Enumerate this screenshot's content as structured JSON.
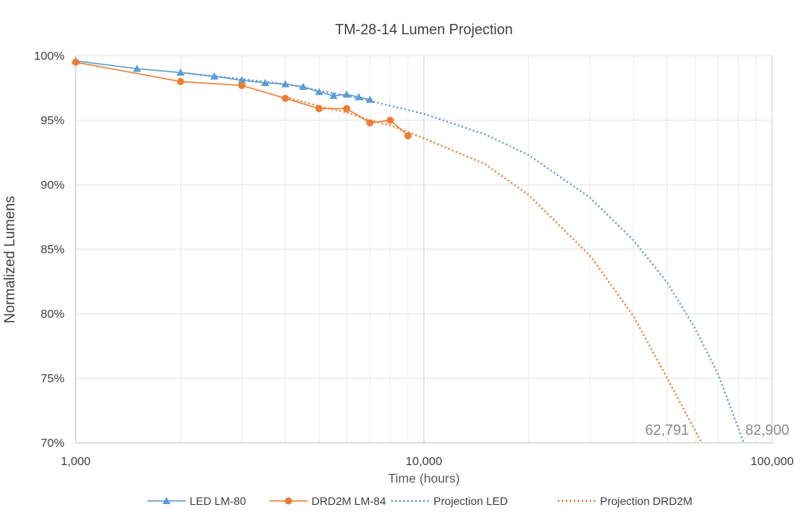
{
  "chart_data": {
    "type": "line",
    "title": "TM-28-14 Lumen Projection",
    "xlabel": "Time (hours)",
    "ylabel": "Normalized Lumens",
    "x_scale": "log",
    "xlim": [
      1000,
      100000
    ],
    "ylim": [
      70,
      100
    ],
    "x_ticks": [
      {
        "value": 1000,
        "label": "1,000"
      },
      {
        "value": 10000,
        "label": "10,000"
      },
      {
        "value": 100000,
        "label": "100,000"
      }
    ],
    "y_ticks": [
      {
        "value": 100,
        "label": "100%"
      },
      {
        "value": 95,
        "label": "95%"
      },
      {
        "value": 90,
        "label": "90%"
      },
      {
        "value": 85,
        "label": "85%"
      },
      {
        "value": 80,
        "label": "80%"
      },
      {
        "value": 75,
        "label": "75%"
      },
      {
        "value": 70,
        "label": "70%"
      }
    ],
    "grid": true,
    "legend_position": "bottom",
    "series": [
      {
        "name": "LED LM-80",
        "style": "solid",
        "marker": "triangle",
        "color": "#5b9bd5",
        "points": [
          [
            1000,
            99.6
          ],
          [
            1500,
            99.0
          ],
          [
            2000,
            98.7
          ],
          [
            2500,
            98.4
          ],
          [
            3000,
            98.1
          ],
          [
            3500,
            97.9
          ],
          [
            4000,
            97.8
          ],
          [
            4500,
            97.6
          ],
          [
            5000,
            97.2
          ],
          [
            5500,
            96.9
          ],
          [
            6000,
            97.0
          ],
          [
            6500,
            96.8
          ],
          [
            7000,
            96.6
          ]
        ]
      },
      {
        "name": "DRD2M LM-84",
        "style": "solid",
        "marker": "circle",
        "color": "#ed7d31",
        "points": [
          [
            1000,
            99.5
          ],
          [
            2000,
            98.0
          ],
          [
            3000,
            97.7
          ],
          [
            4000,
            96.7
          ],
          [
            5000,
            95.9
          ],
          [
            6000,
            95.9
          ],
          [
            7000,
            94.8
          ],
          [
            8000,
            95.0
          ],
          [
            9000,
            93.8
          ]
        ]
      },
      {
        "name": "Projection LED",
        "style": "dotted",
        "marker": "none",
        "color": "#5b9bd5",
        "points": [
          [
            2000,
            98.7
          ],
          [
            3000,
            98.2
          ],
          [
            4000,
            97.8
          ],
          [
            5000,
            97.3
          ],
          [
            6000,
            96.9
          ],
          [
            7000,
            96.5
          ],
          [
            10000,
            95.5
          ],
          [
            15000,
            93.9
          ],
          [
            20000,
            92.3
          ],
          [
            30000,
            89.0
          ],
          [
            40000,
            85.7
          ],
          [
            50000,
            82.4
          ],
          [
            60000,
            78.9
          ],
          [
            70000,
            75.3
          ],
          [
            82900,
            70.0
          ]
        ]
      },
      {
        "name": "Projection DRD2M",
        "style": "dotted",
        "marker": "none",
        "color": "#ed7d31",
        "points": [
          [
            4000,
            96.8
          ],
          [
            5000,
            96.1
          ],
          [
            6000,
            95.6
          ],
          [
            7000,
            95.0
          ],
          [
            8000,
            94.6
          ],
          [
            9000,
            94.1
          ],
          [
            10000,
            93.6
          ],
          [
            15000,
            91.6
          ],
          [
            20000,
            89.2
          ],
          [
            30000,
            84.5
          ],
          [
            40000,
            79.8
          ],
          [
            50000,
            75.0
          ],
          [
            62791,
            70.0
          ]
        ]
      }
    ],
    "annotations": [
      {
        "text": "62,791",
        "x": 62791,
        "y": 70
      },
      {
        "text": "82,900",
        "x": 82900,
        "y": 70
      }
    ]
  }
}
